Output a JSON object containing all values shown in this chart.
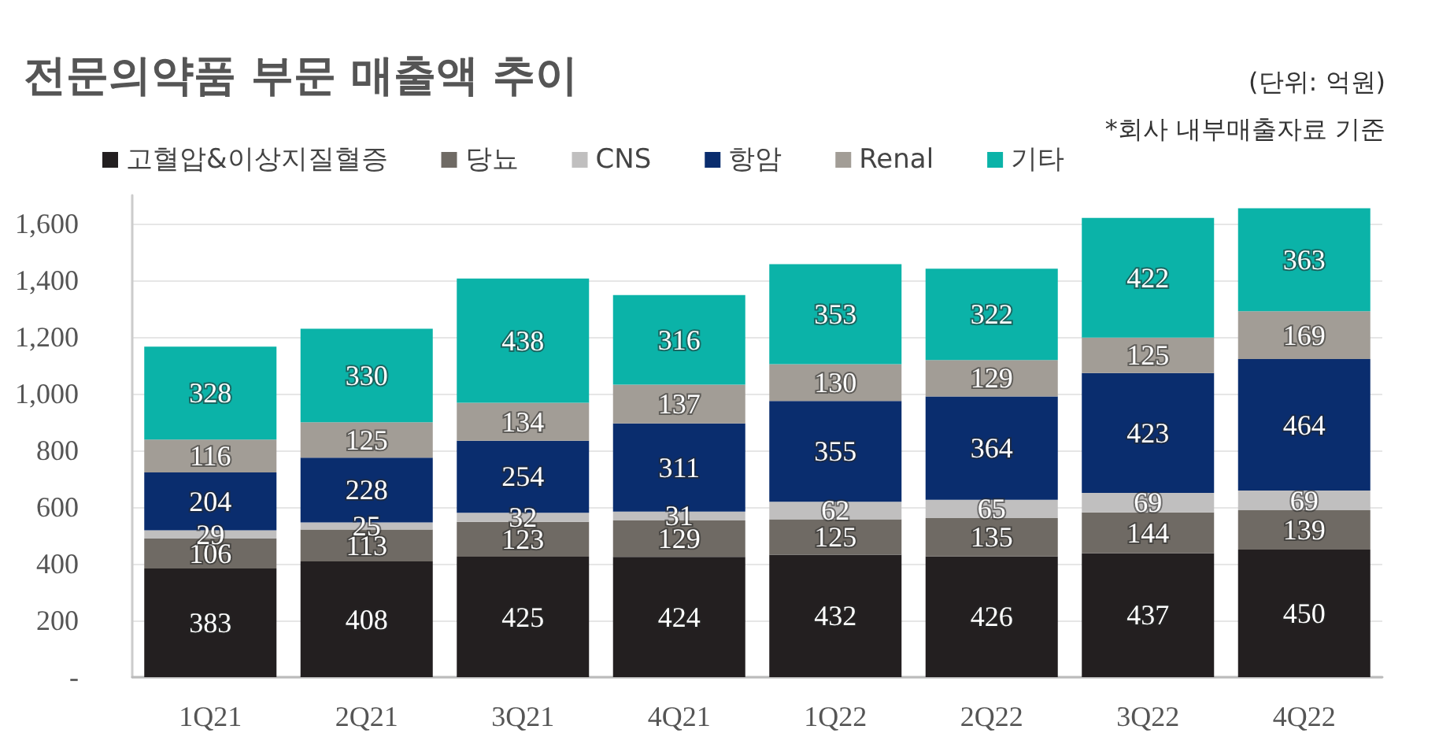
{
  "chart_data": {
    "type": "bar",
    "stacked": true,
    "title": "전문의약품 부문 매출액 추이",
    "annotations": [
      "(단위: 억원)",
      "*회사 내부매출자료 기준"
    ],
    "categories": [
      "1Q21",
      "2Q21",
      "3Q21",
      "4Q21",
      "1Q22",
      "2Q22",
      "3Q22",
      "4Q22"
    ],
    "series": [
      {
        "name": "고혈압&이상지질혈증",
        "color": "#231f20",
        "values": [
          383,
          408,
          425,
          424,
          432,
          426,
          437,
          450
        ]
      },
      {
        "name": "당뇨",
        "color": "#6f6a64",
        "values": [
          106,
          113,
          123,
          129,
          125,
          135,
          144,
          139
        ]
      },
      {
        "name": "CNS",
        "color": "#c0bfbf",
        "values": [
          29,
          25,
          32,
          31,
          62,
          65,
          69,
          69
        ]
      },
      {
        "name": "항암",
        "color": "#0a2d6e",
        "values": [
          204,
          228,
          254,
          311,
          355,
          364,
          423,
          464
        ]
      },
      {
        "name": "Renal",
        "color": "#a29d96",
        "values": [
          116,
          125,
          134,
          137,
          130,
          129,
          125,
          169
        ]
      },
      {
        "name": "기타",
        "color": "#0bb3a8",
        "values": [
          328,
          330,
          438,
          316,
          353,
          322,
          422,
          363
        ]
      }
    ],
    "ylim": [
      0,
      1700
    ],
    "yticks": [
      {
        "value": 0,
        "label": "-"
      },
      200,
      400,
      600,
      800,
      {
        "value": 1000,
        "label": "1,000"
      },
      {
        "value": 1200,
        "label": "1,200"
      },
      {
        "value": 1400,
        "label": "1,400"
      },
      {
        "value": 1600,
        "label": "1,600"
      }
    ],
    "grid": "y",
    "legend": "top left",
    "data_labels": true
  }
}
